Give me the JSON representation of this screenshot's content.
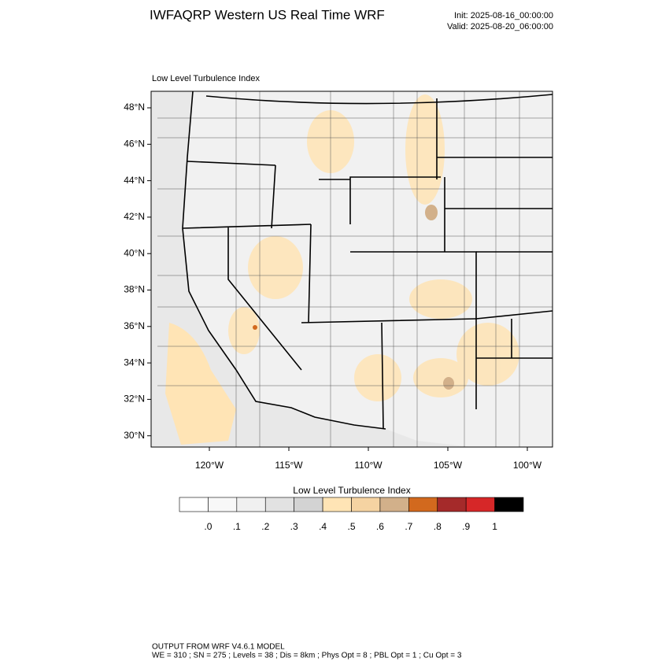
{
  "header": {
    "title": "IWFAQRP Western US Real Time WRF",
    "init": "Init: 2025-08-16_00:00:00",
    "valid": "Valid: 2025-08-20_06:00:00"
  },
  "map": {
    "label": "Low Level Turbulence Index",
    "lat_ticks": [
      {
        "value": 48,
        "label": "48°N"
      },
      {
        "value": 46,
        "label": "46°N"
      },
      {
        "value": 44,
        "label": "44°N"
      },
      {
        "value": 42,
        "label": "42°N"
      },
      {
        "value": 40,
        "label": "40°N"
      },
      {
        "value": 38,
        "label": "38°N"
      },
      {
        "value": 36,
        "label": "36°N"
      },
      {
        "value": 34,
        "label": "34°N"
      },
      {
        "value": 32,
        "label": "32°N"
      },
      {
        "value": 30,
        "label": "30°N"
      }
    ],
    "lon_ticks": [
      {
        "value": -120,
        "label": "120°W"
      },
      {
        "value": -115,
        "label": "115°W"
      },
      {
        "value": -110,
        "label": "110°W"
      },
      {
        "value": -105,
        "label": "105°W"
      },
      {
        "value": -100,
        "label": "100°W"
      }
    ]
  },
  "colorbar": {
    "title": "Low Level Turbulence Index",
    "colors": [
      "#ffffff",
      "#f8f8f8",
      "#f0f0f0",
      "#e2e2e2",
      "#d3d3d3",
      "#ffe4b5",
      "#f5d3a2",
      "#d2b08a",
      "#d2691e",
      "#a52a2a",
      "#d62728",
      "#000000"
    ],
    "labels": [
      ".0",
      ".1",
      ".2",
      ".3",
      ".4",
      ".5",
      ".6",
      ".7",
      ".8",
      ".9",
      "1"
    ]
  },
  "footer": {
    "line1": "OUTPUT FROM WRF V4.6.1 MODEL",
    "line2": "WE = 310 ; SN = 275 ; Levels = 38 ; Dis = 8km ; Phys Opt = 8 ; PBL Opt = 1 ; Cu Opt = 3"
  }
}
